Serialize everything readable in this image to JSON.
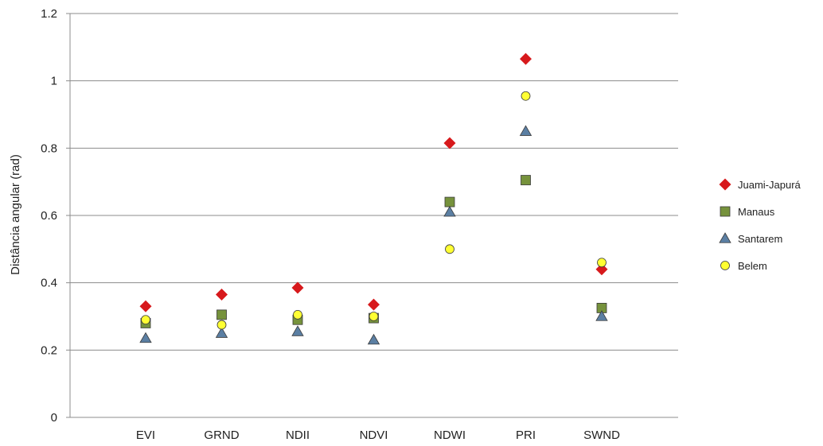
{
  "chart_data": {
    "type": "scatter",
    "ylabel": "Distância angular (rad)",
    "xlabel": "",
    "categories": [
      "EVI",
      "GRND",
      "NDII",
      "NDVI",
      "NDWI",
      "PRI",
      "SWND"
    ],
    "ylim": [
      0,
      1.2
    ],
    "yticks": [
      "0",
      "0.2",
      "0.4",
      "0.6",
      "0.8",
      "1",
      "1.2"
    ],
    "yticks_values": [
      0,
      0.2,
      0.4,
      0.6,
      0.8,
      1.0,
      1.2
    ],
    "grid": true,
    "legend_position": "right",
    "series": [
      {
        "name": "Juami-Japurá",
        "marker": "diamond",
        "color": "#d7191c",
        "values": [
          0.33,
          0.365,
          0.385,
          0.335,
          0.815,
          1.065,
          0.44
        ]
      },
      {
        "name": "Manaus",
        "marker": "square",
        "color": "#76923c",
        "values": [
          0.28,
          0.305,
          0.29,
          0.295,
          0.64,
          0.705,
          0.325
        ]
      },
      {
        "name": "Santarem",
        "marker": "triangle",
        "color": "#5b7fa3",
        "values": [
          0.235,
          0.25,
          0.255,
          0.23,
          0.61,
          0.85,
          0.3
        ]
      },
      {
        "name": "Belem",
        "marker": "circle",
        "color": "#ffff33",
        "values": [
          0.29,
          0.275,
          0.305,
          0.3,
          0.5,
          0.955,
          0.46
        ]
      }
    ]
  }
}
